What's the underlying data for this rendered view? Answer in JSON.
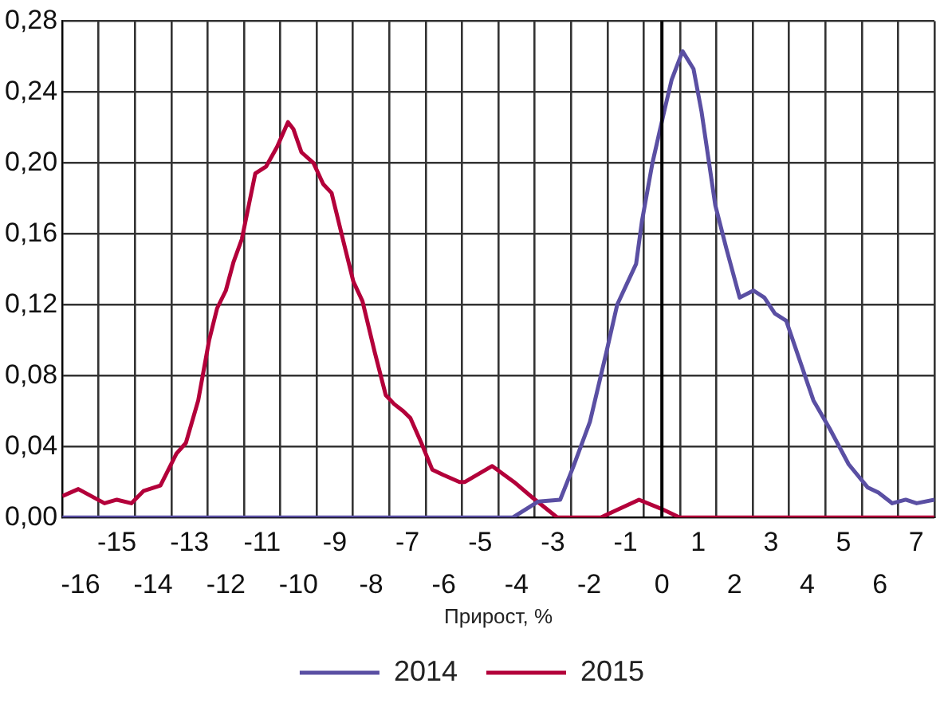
{
  "chart_data": {
    "type": "line",
    "xlabel": "Прирост, %",
    "marker": "none",
    "grid": true,
    "legend": "bottom",
    "xlim": [
      -16.5,
      7.5
    ],
    "xticks": [
      {
        "value": -16.5,
        "label": null
      },
      {
        "value": -15.5,
        "label": null
      },
      -15,
      {
        "value": -14.5,
        "label": null
      },
      {
        "value": -13.5,
        "label": null
      },
      -13,
      {
        "value": -12.5,
        "label": null
      },
      {
        "value": -11.5,
        "label": null
      },
      -11,
      {
        "value": -10.5,
        "label": null
      },
      {
        "value": -9.5,
        "label": null
      },
      -9,
      {
        "value": -8.5,
        "label": null
      },
      {
        "value": -7.5,
        "label": null
      },
      -7,
      {
        "value": -6.5,
        "label": null
      },
      {
        "value": -5.5,
        "label": null
      },
      -5,
      {
        "value": -4.5,
        "label": null
      },
      {
        "value": -3.5,
        "label": null
      },
      -3,
      {
        "value": -2.5,
        "label": null
      },
      {
        "value": -1.5,
        "label": null
      },
      -1,
      {
        "value": -0.5,
        "label": null
      },
      {
        "value": 0.5,
        "label": null
      },
      1,
      {
        "value": 1.5,
        "label": null
      },
      {
        "value": 2.5,
        "label": null
      },
      3,
      {
        "value": 3.5,
        "label": null
      },
      {
        "value": 4.5,
        "label": null
      },
      5,
      {
        "value": 5.5,
        "label": null
      },
      {
        "value": 6.5,
        "label": null
      },
      7,
      {
        "value": 7.5,
        "label": null
      }
    ],
    "x2lim": [
      -16.5,
      7.5
    ],
    "x2ticks": [
      -16,
      -14,
      -12,
      -10,
      -8,
      -6,
      -4,
      -2,
      0,
      2,
      4,
      6
    ],
    "ylim": [
      0,
      0.28
    ],
    "yticks": [
      {
        "value": 0,
        "label": "0,00"
      },
      {
        "value": 0.04,
        "label": "0,04"
      },
      {
        "value": 0.08,
        "label": "0,08"
      },
      {
        "value": 0.12,
        "label": "0,12"
      },
      {
        "value": 0.16,
        "label": "0,16"
      },
      {
        "value": 0.2,
        "label": "0,20"
      },
      {
        "value": 0.24,
        "label": "0,24"
      },
      {
        "value": 0.28,
        "label": "0,28"
      }
    ],
    "ref_lines": [
      {
        "axis": "x",
        "value": 0,
        "color": "#000000"
      }
    ],
    "series": [
      {
        "name": "2014",
        "color": "#5a4fa3",
        "x": [
          -16.5,
          -4.1,
          -3.4,
          -2.8,
          -2.43,
          -1.98,
          -1.53,
          -1.23,
          -0.71,
          -0.55,
          -0.26,
          0.04,
          0.27,
          0.57,
          0.87,
          1.09,
          1.47,
          1.77,
          2.14,
          2.52,
          2.82,
          3.11,
          3.42,
          3.72,
          4.17,
          4.62,
          5.14,
          5.66,
          5.96,
          6.34,
          6.71,
          7.01,
          7.5
        ],
        "values": [
          0,
          0,
          0.009,
          0.01,
          0.029,
          0.054,
          0.093,
          0.12,
          0.143,
          0.167,
          0.2,
          0.227,
          0.247,
          0.263,
          0.253,
          0.229,
          0.176,
          0.152,
          0.124,
          0.128,
          0.124,
          0.115,
          0.111,
          0.093,
          0.066,
          0.05,
          0.03,
          0.017,
          0.014,
          0.008,
          0.01,
          0.008,
          0.01
        ]
      },
      {
        "name": "2015",
        "color": "#b3003a",
        "x": [
          -16.5,
          -16.06,
          -15.34,
          -15.0,
          -14.6,
          -14.26,
          -13.8,
          -13.36,
          -13.1,
          -12.76,
          -12.46,
          -12.24,
          -12.0,
          -11.79,
          -11.56,
          -11.19,
          -10.89,
          -10.59,
          -10.29,
          -10.14,
          -9.92,
          -9.59,
          -9.32,
          -9.09,
          -8.72,
          -8.49,
          -8.24,
          -7.9,
          -7.6,
          -7.37,
          -7.12,
          -6.92,
          -6.62,
          -6.32,
          -6.02,
          -5.57,
          -5.42,
          -4.67,
          -4.07,
          -3.55,
          -2.88,
          -1.68,
          -0.63,
          -0.03,
          0.49,
          7.5
        ],
        "values": [
          0.012,
          0.016,
          0.008,
          0.01,
          0.008,
          0.015,
          0.018,
          0.036,
          0.042,
          0.066,
          0.1,
          0.118,
          0.128,
          0.144,
          0.157,
          0.194,
          0.198,
          0.209,
          0.223,
          0.219,
          0.206,
          0.2,
          0.188,
          0.183,
          0.152,
          0.133,
          0.122,
          0.093,
          0.069,
          0.064,
          0.06,
          0.056,
          0.042,
          0.027,
          0.024,
          0.02,
          0.02,
          0.029,
          0.02,
          0.011,
          0,
          0,
          0.01,
          0.005,
          0,
          0
        ]
      }
    ]
  }
}
